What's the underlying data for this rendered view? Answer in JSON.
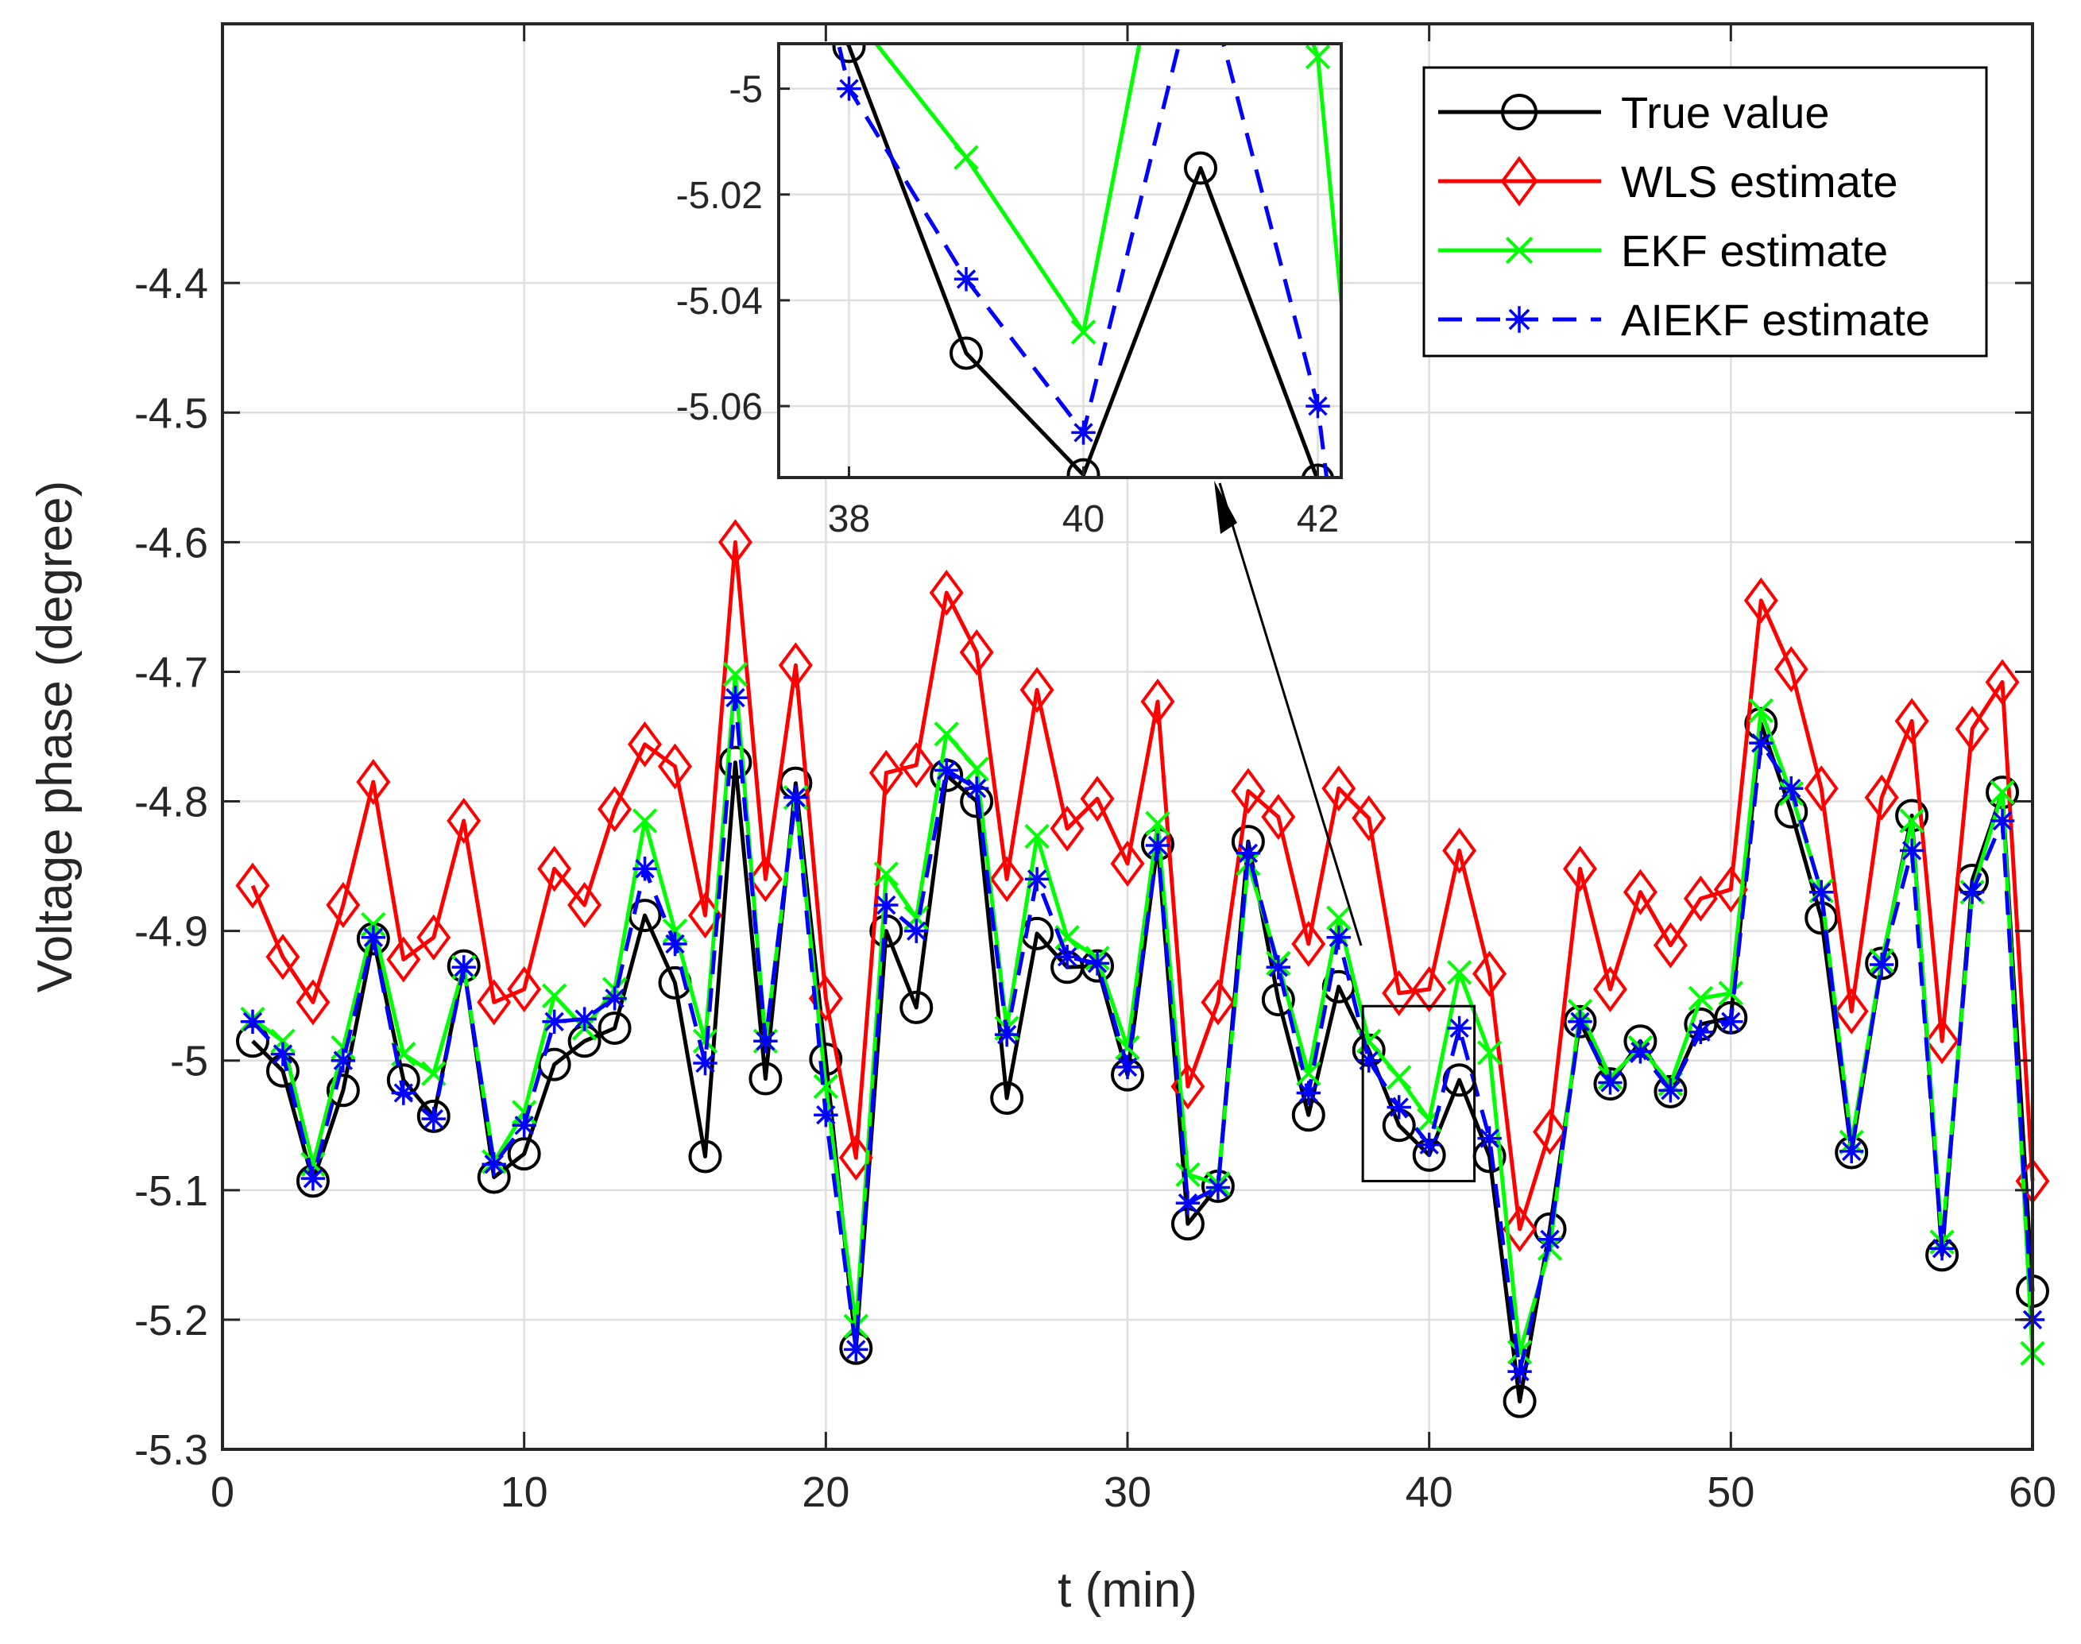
{
  "chart_data": {
    "type": "line",
    "xlabel": "t (min)",
    "ylabel": "Voltage phase (degree)",
    "xlim": [
      0,
      60
    ],
    "ylim": [
      -5.3,
      -4.2
    ],
    "xticks": [
      0,
      10,
      20,
      30,
      40,
      50,
      60
    ],
    "yticks": [
      -5.3,
      -5.2,
      -5.1,
      -5.0,
      -4.9,
      -4.8,
      -4.7,
      -4.6,
      -4.5,
      -4.4
    ],
    "ytick_labels": [
      "-5.3",
      "-5.2",
      "-5.1",
      "-5",
      "-4.9",
      "-4.8",
      "-4.7",
      "-4.6",
      "-4.5",
      "-4.4"
    ],
    "grid": true,
    "legend_position": "top-right",
    "x": [
      1,
      2,
      3,
      4,
      5,
      6,
      7,
      8,
      9,
      10,
      11,
      12,
      13,
      14,
      15,
      16,
      17,
      18,
      19,
      20,
      21,
      22,
      23,
      24,
      25,
      26,
      27,
      28,
      29,
      30,
      31,
      32,
      33,
      34,
      35,
      36,
      37,
      38,
      39,
      40,
      41,
      42,
      43,
      44,
      45,
      46,
      47,
      48,
      49,
      50,
      51,
      52,
      53,
      54,
      55,
      56,
      57,
      58,
      59,
      60
    ],
    "series": [
      {
        "name": "True value",
        "color": "#000000",
        "marker": "circle",
        "line": "solid",
        "values": [
          -4.985,
          -5.008,
          -5.093,
          -5.023,
          -4.906,
          -5.015,
          -5.043,
          -4.927,
          -5.09,
          -5.072,
          -5.003,
          -4.985,
          -4.975,
          -4.888,
          -4.94,
          -5.074,
          -4.77,
          -5.014,
          -4.786,
          -4.999,
          -5.222,
          -4.9,
          -4.959,
          -4.78,
          -4.8,
          -5.029,
          -4.902,
          -4.928,
          -4.927,
          -5.011,
          -4.833,
          -5.126,
          -5.097,
          -4.831,
          -4.953,
          -5.042,
          -4.943,
          -4.992,
          -5.05,
          -5.073,
          -5.015,
          -5.074,
          -5.263,
          -5.13,
          -4.97,
          -5.018,
          -4.985,
          -5.024,
          -4.972,
          -4.967,
          -4.74,
          -4.808,
          -4.89,
          -5.071,
          -4.925,
          -4.811,
          -5.15,
          -4.861,
          -4.793,
          -5.178
        ]
      },
      {
        "name": "WLS estimate",
        "color": "#ff0000",
        "marker": "diamond",
        "line": "solid",
        "values": [
          -4.865,
          -4.92,
          -4.955,
          -4.88,
          -4.785,
          -4.922,
          -4.905,
          -4.815,
          -4.955,
          -4.945,
          -4.852,
          -4.88,
          -4.806,
          -4.756,
          -4.773,
          -4.888,
          -4.6,
          -4.86,
          -4.695,
          -4.952,
          -5.075,
          -4.778,
          -4.772,
          -4.639,
          -4.685,
          -4.86,
          -4.714,
          -4.821,
          -4.798,
          -4.848,
          -4.723,
          -5.02,
          -4.955,
          -4.792,
          -4.812,
          -4.91,
          -4.79,
          -4.813,
          -4.948,
          -4.945,
          -4.838,
          -4.933,
          -5.13,
          -5.055,
          -4.852,
          -4.945,
          -4.87,
          -4.911,
          -4.875,
          -4.868,
          -4.645,
          -4.698,
          -4.79,
          -4.962,
          -4.797,
          -4.738,
          -4.985,
          -4.744,
          -4.708,
          -5.093
        ]
      },
      {
        "name": "EKF estimate",
        "color": "#00ff00",
        "marker": "x",
        "line": "solid",
        "values": [
          -4.968,
          -4.985,
          -5.08,
          -4.99,
          -4.895,
          -4.995,
          -5.01,
          -4.928,
          -5.078,
          -5.04,
          -4.95,
          -4.975,
          -4.945,
          -4.815,
          -4.9,
          -4.985,
          -4.702,
          -4.985,
          -4.797,
          -5.02,
          -5.205,
          -4.856,
          -4.89,
          -4.748,
          -4.775,
          -4.975,
          -4.827,
          -4.905,
          -4.921,
          -4.99,
          -4.817,
          -5.088,
          -5.095,
          -4.848,
          -4.925,
          -5.01,
          -4.89,
          -4.985,
          -5.013,
          -5.046,
          -4.932,
          -4.994,
          -5.225,
          -5.145,
          -4.962,
          -5.013,
          -4.99,
          -5.018,
          -4.952,
          -4.948,
          -4.73,
          -4.794,
          -4.869,
          -5.063,
          -4.923,
          -4.815,
          -5.14,
          -4.87,
          -4.793,
          -5.226
        ]
      },
      {
        "name": "AIEKF estimate",
        "color": "#0000ff",
        "marker": "asterisk",
        "line": "dashed",
        "values": [
          -4.97,
          -4.995,
          -5.091,
          -5.0,
          -4.905,
          -5.025,
          -5.045,
          -4.928,
          -5.08,
          -5.05,
          -4.97,
          -4.968,
          -4.952,
          -4.852,
          -4.91,
          -5.002,
          -4.72,
          -4.985,
          -4.797,
          -5.042,
          -5.223,
          -4.88,
          -4.9,
          -4.776,
          -4.79,
          -4.98,
          -4.86,
          -4.92,
          -4.925,
          -5.005,
          -4.834,
          -5.11,
          -5.098,
          -4.84,
          -4.928,
          -5.025,
          -4.905,
          -5.0,
          -5.036,
          -5.065,
          -4.975,
          -5.06,
          -5.24,
          -5.138,
          -4.97,
          -5.017,
          -4.993,
          -5.023,
          -4.978,
          -4.97,
          -4.755,
          -4.79,
          -4.87,
          -5.07,
          -4.926,
          -4.838,
          -5.145,
          -4.87,
          -4.815,
          -5.2
        ]
      }
    ],
    "inset": {
      "xlim": [
        37.4,
        42.2
      ],
      "ylim": [
        -5.0735,
        -4.9915
      ],
      "xticks": [
        38,
        40,
        42
      ],
      "yticks": [
        -5.06,
        -5.04,
        -5.02,
        -5.0
      ],
      "ytick_labels": [
        "-5.06",
        "-5.04",
        "-5.02",
        "-5"
      ],
      "zoom_box": {
        "x": [
          37.8,
          41.5
        ],
        "y": [
          -5.093,
          -4.958
        ]
      }
    }
  }
}
